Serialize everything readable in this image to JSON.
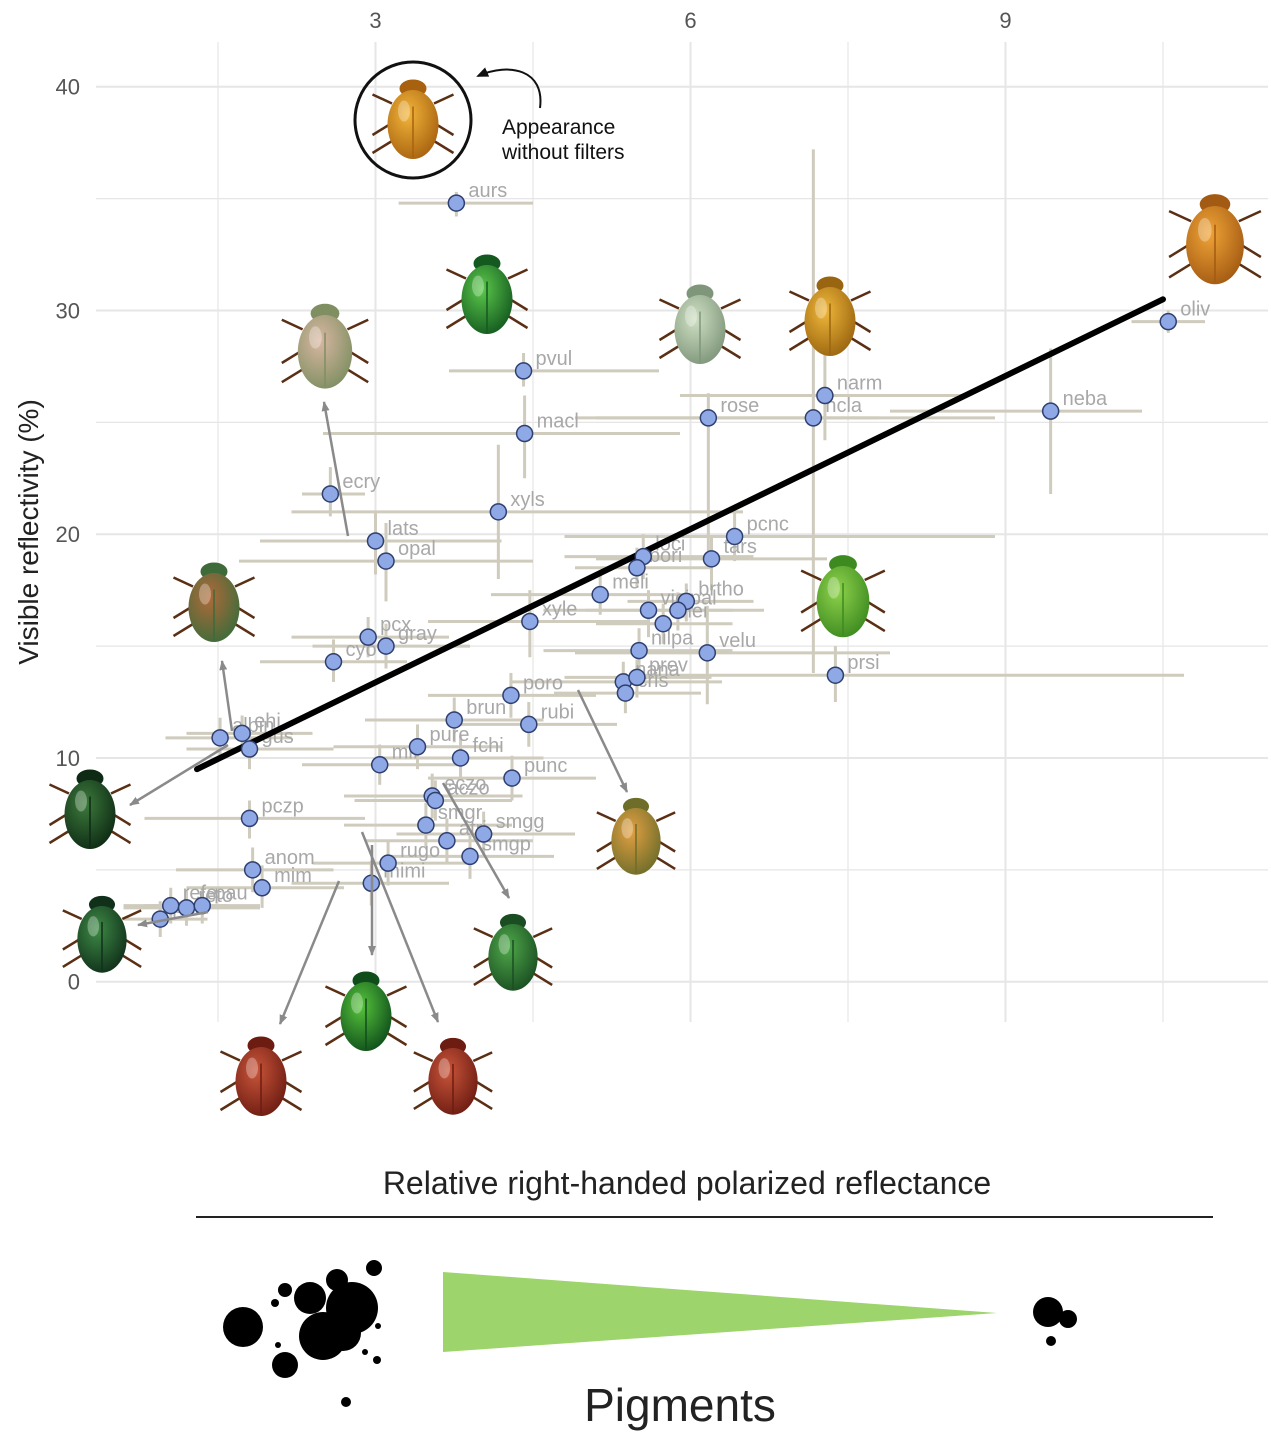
{
  "chart_data": {
    "type": "scatter",
    "xlabel": "Relative right-handed polarized reflectance",
    "ylabel": "Visible reflectivity (%)",
    "x_ticks": [
      3,
      6,
      9
    ],
    "y_ticks": [
      0,
      10,
      20,
      30,
      40
    ],
    "xlim": [
      0.5,
      11.5
    ],
    "ylim": [
      -1.8,
      42
    ],
    "grid": true,
    "trend_line": {
      "x1": 1.3,
      "y1": 9.5,
      "x2": 10.5,
      "y2": 30.5
    },
    "points": [
      {
        "label": "aurs",
        "x": 3.77,
        "y": 34.8,
        "xerr": [
          3.22,
          4.5
        ],
        "yerr": [
          34.2,
          35.3
        ]
      },
      {
        "label": "pvul",
        "x": 4.41,
        "y": 27.3,
        "xerr": [
          3.7,
          5.7
        ],
        "yerr": [
          26.6,
          28.1
        ]
      },
      {
        "label": "macl",
        "x": 4.42,
        "y": 24.5,
        "xerr": [
          2.5,
          5.9
        ],
        "yerr": [
          22.5,
          26.2
        ]
      },
      {
        "label": "rose",
        "x": 6.17,
        "y": 25.2,
        "xerr": [
          4.9,
          7.8
        ],
        "yerr": [
          19.0,
          26.3
        ]
      },
      {
        "label": "narm",
        "x": 7.28,
        "y": 26.2,
        "xerr": [
          5.9,
          8.6
        ],
        "yerr": [
          24.2,
          28.4
        ]
      },
      {
        "label": "ncla",
        "x": 7.17,
        "y": 25.2,
        "xerr": [
          5.1,
          8.9
        ],
        "yerr": [
          13.8,
          37.2
        ]
      },
      {
        "label": "neba",
        "x": 9.43,
        "y": 25.5,
        "xerr": [
          7.9,
          10.3
        ],
        "yerr": [
          21.8,
          28.3
        ]
      },
      {
        "label": "oliv",
        "x": 10.55,
        "y": 29.5,
        "xerr": [
          10.2,
          10.9
        ],
        "yerr": [
          29.0,
          30.0
        ]
      },
      {
        "label": "ecry",
        "x": 2.57,
        "y": 21.8,
        "xerr": [
          2.3,
          2.9
        ],
        "yerr": [
          20.8,
          23.0
        ]
      },
      {
        "label": "xyls",
        "x": 4.17,
        "y": 21.0,
        "xerr": [
          2.2,
          6.5
        ],
        "yerr": [
          18.0,
          24.0
        ]
      },
      {
        "label": "lats",
        "x": 3.0,
        "y": 19.7,
        "xerr": [
          1.9,
          4.2
        ],
        "yerr": [
          18.2,
          21.0
        ]
      },
      {
        "label": "opal",
        "x": 3.1,
        "y": 18.8,
        "xerr": [
          1.7,
          4.5
        ],
        "yerr": [
          17.0,
          20.5
        ]
      },
      {
        "label": "pcnc",
        "x": 6.42,
        "y": 19.9,
        "xerr": [
          4.8,
          8.9
        ],
        "yerr": [
          18.8,
          21.0
        ]
      },
      {
        "label": "tars",
        "x": 6.2,
        "y": 18.9,
        "xerr": [
          5.1,
          7.3
        ],
        "yerr": [
          17.5,
          19.9
        ]
      },
      {
        "label": "loci",
        "x": 5.55,
        "y": 19.0,
        "xerr": [
          4.8,
          6.6
        ],
        "yerr": [
          18.0,
          20.0
        ]
      },
      {
        "label": "bori",
        "x": 5.49,
        "y": 18.5,
        "xerr": [
          4.9,
          6.2
        ],
        "yerr": [
          17.6,
          19.4
        ]
      },
      {
        "label": "meli",
        "x": 5.14,
        "y": 17.3,
        "xerr": [
          4.1,
          6.0
        ],
        "yerr": [
          16.4,
          18.2
        ]
      },
      {
        "label": "brtho",
        "x": 5.96,
        "y": 17.0,
        "xerr": [
          5.4,
          6.6
        ],
        "yerr": [
          16.1,
          17.8
        ]
      },
      {
        "label": "pal",
        "x": 5.88,
        "y": 16.6,
        "xerr": [
          5.0,
          6.7
        ],
        "yerr": [
          15.7,
          17.4
        ]
      },
      {
        "label": "vici",
        "x": 5.6,
        "y": 16.6,
        "xerr": [
          4.6,
          6.4
        ],
        "yerr": [
          15.4,
          17.5
        ]
      },
      {
        "label": "mei",
        "x": 5.74,
        "y": 16.0,
        "xerr": [
          5.1,
          6.4
        ],
        "yerr": [
          15.1,
          16.9
        ]
      },
      {
        "label": "xyle",
        "x": 4.47,
        "y": 16.1,
        "xerr": [
          3.5,
          5.6
        ],
        "yerr": [
          14.5,
          17.5
        ]
      },
      {
        "label": "gray",
        "x": 3.1,
        "y": 15.0,
        "xerr": [
          2.4,
          3.9
        ],
        "yerr": [
          14.0,
          16.0
        ]
      },
      {
        "label": "pcx",
        "x": 2.93,
        "y": 15.4,
        "xerr": [
          2.2,
          3.7
        ],
        "yerr": [
          14.5,
          16.3
        ]
      },
      {
        "label": "velu",
        "x": 6.16,
        "y": 14.7,
        "xerr": [
          4.9,
          7.9
        ],
        "yerr": [
          12.4,
          16.8
        ]
      },
      {
        "label": "prsi",
        "x": 7.38,
        "y": 13.7,
        "xerr": [
          5.5,
          10.7
        ],
        "yerr": [
          12.5,
          15.0
        ]
      },
      {
        "label": "nilpa",
        "x": 5.51,
        "y": 14.8,
        "xerr": [
          4.6,
          6.4
        ],
        "yerr": [
          13.8,
          15.8
        ]
      },
      {
        "label": "cyo",
        "x": 2.6,
        "y": 14.3,
        "xerr": [
          1.9,
          3.3
        ],
        "yerr": [
          13.4,
          15.3
        ]
      },
      {
        "label": "nana",
        "x": 5.36,
        "y": 13.4,
        "xerr": [
          4.3,
          6.3
        ],
        "yerr": [
          12.6,
          14.3
        ]
      },
      {
        "label": "prev",
        "x": 5.49,
        "y": 13.6,
        "xerr": [
          4.8,
          6.2
        ],
        "yerr": [
          12.7,
          14.4
        ]
      },
      {
        "label": "cris",
        "x": 5.38,
        "y": 12.9,
        "xerr": [
          4.7,
          6.1
        ],
        "yerr": [
          12.0,
          13.8
        ]
      },
      {
        "label": "poro",
        "x": 4.29,
        "y": 12.8,
        "xerr": [
          3.5,
          5.1
        ],
        "yerr": [
          11.8,
          13.8
        ]
      },
      {
        "label": "brun",
        "x": 3.75,
        "y": 11.7,
        "xerr": [
          2.9,
          4.6
        ],
        "yerr": [
          10.7,
          12.7
        ]
      },
      {
        "label": "rubi",
        "x": 4.46,
        "y": 11.5,
        "xerr": [
          3.7,
          5.3
        ],
        "yerr": [
          10.5,
          12.5
        ]
      },
      {
        "label": "albin",
        "x": 1.52,
        "y": 10.9,
        "xerr": [
          1.0,
          2.2
        ],
        "yerr": [
          10.1,
          11.8
        ]
      },
      {
        "label": "ehi",
        "x": 1.73,
        "y": 11.1,
        "xerr": [
          1.2,
          2.4
        ],
        "yerr": [
          10.3,
          11.9
        ]
      },
      {
        "label": "gus",
        "x": 1.8,
        "y": 10.4,
        "xerr": [
          1.2,
          2.6
        ],
        "yerr": [
          9.5,
          11.3
        ]
      },
      {
        "label": "pure",
        "x": 3.4,
        "y": 10.5,
        "xerr": [
          2.6,
          4.2
        ],
        "yerr": [
          9.5,
          11.5
        ]
      },
      {
        "label": "fchi",
        "x": 3.81,
        "y": 10.0,
        "xerr": [
          3.0,
          4.6
        ],
        "yerr": [
          9.0,
          11.0
        ]
      },
      {
        "label": "mlf",
        "x": 3.04,
        "y": 9.7,
        "xerr": [
          2.3,
          3.8
        ],
        "yerr": [
          8.8,
          10.6
        ]
      },
      {
        "label": "punc",
        "x": 4.3,
        "y": 9.1,
        "xerr": [
          3.5,
          5.1
        ],
        "yerr": [
          8.1,
          10.1
        ]
      },
      {
        "label": "eczo",
        "x": 3.54,
        "y": 8.3,
        "xerr": [
          2.7,
          4.4
        ],
        "yerr": [
          7.3,
          9.3
        ]
      },
      {
        "label": "aczo",
        "x": 3.57,
        "y": 8.1,
        "xerr": [
          2.8,
          4.3
        ],
        "yerr": [
          7.2,
          9.0
        ]
      },
      {
        "label": "pczp",
        "x": 1.8,
        "y": 7.3,
        "xerr": [
          0.8,
          2.9
        ],
        "yerr": [
          6.4,
          8.1
        ]
      },
      {
        "label": "smgr",
        "x": 3.48,
        "y": 7.0,
        "xerr": [
          2.7,
          4.3
        ],
        "yerr": [
          6.0,
          8.0
        ]
      },
      {
        "label": "atri",
        "x": 3.68,
        "y": 6.3,
        "xerr": [
          2.9,
          4.5
        ],
        "yerr": [
          5.3,
          7.3
        ]
      },
      {
        "label": "smgg",
        "x": 4.03,
        "y": 6.6,
        "xerr": [
          3.2,
          4.9
        ],
        "yerr": [
          5.6,
          7.6
        ]
      },
      {
        "label": "smgp",
        "x": 3.9,
        "y": 5.6,
        "xerr": [
          3.1,
          4.7
        ],
        "yerr": [
          4.6,
          6.6
        ]
      },
      {
        "label": "anom",
        "x": 1.83,
        "y": 5.0,
        "xerr": [
          1.1,
          2.6
        ],
        "yerr": [
          4.0,
          6.0
        ]
      },
      {
        "label": "rugo",
        "x": 3.12,
        "y": 5.3,
        "xerr": [
          2.4,
          3.9
        ],
        "yerr": [
          4.3,
          6.3
        ]
      },
      {
        "label": "mim",
        "x": 1.92,
        "y": 4.2,
        "xerr": [
          1.2,
          2.7
        ],
        "yerr": [
          3.3,
          5.2
        ]
      },
      {
        "label": "mimi",
        "x": 2.96,
        "y": 4.4,
        "xerr": [
          2.2,
          3.7
        ],
        "yerr": [
          3.4,
          5.4
        ]
      },
      {
        "label": "refe",
        "x": 1.05,
        "y": 3.4,
        "xerr": [
          0.6,
          1.6
        ],
        "yerr": [
          2.6,
          4.2
        ]
      },
      {
        "label": "reto",
        "x": 1.2,
        "y": 3.3,
        "xerr": [
          0.6,
          1.9
        ],
        "yerr": [
          2.5,
          4.1
        ]
      },
      {
        "label": "pau",
        "x": 1.35,
        "y": 3.4,
        "xerr": [
          0.8,
          1.9
        ],
        "yerr": [
          2.6,
          4.2
        ]
      },
      {
        "label": "pal",
        "x": 0.95,
        "y": 2.8,
        "xerr": [
          0.6,
          1.4
        ],
        "yerr": [
          2.0,
          3.6
        ]
      }
    ],
    "annotation": {
      "lines": [
        "Appearance",
        "without filters"
      ]
    },
    "legend_title": "Pigments",
    "colors": {
      "point_fill": "#8fa8e6",
      "point_stroke": "#2f3f6f",
      "errorbar": "#cfcbbd",
      "grid": "#e6e6e6",
      "trend": "#000000",
      "pigment_wedge": "#9dd46b",
      "arrow": "#8a8a8a"
    }
  },
  "beetle_images": [
    {
      "name": "aurs-beetle",
      "kind": "gold",
      "circled": true
    },
    {
      "name": "pvul-beetle",
      "kind": "green-gloss"
    },
    {
      "name": "rose-beetle",
      "kind": "pale-green"
    },
    {
      "name": "narm-beetle",
      "kind": "yellow"
    },
    {
      "name": "oliv-beetle",
      "kind": "orange"
    },
    {
      "name": "lats-beetle",
      "kind": "pink-green"
    },
    {
      "name": "left-upper-beetle",
      "kind": "bronze-green"
    },
    {
      "name": "prsi-beetle",
      "kind": "lime"
    },
    {
      "name": "left-mid-beetle",
      "kind": "dark-green"
    },
    {
      "name": "left-low-beetle",
      "kind": "dark-green-small"
    },
    {
      "name": "cris-beetle",
      "kind": "orange-green"
    },
    {
      "name": "punc-beetle",
      "kind": "green-dark"
    },
    {
      "name": "smgr-beetle",
      "kind": "bright-green"
    },
    {
      "name": "mimi-beetle",
      "kind": "red"
    },
    {
      "name": "rugo-beetle",
      "kind": "red"
    }
  ]
}
